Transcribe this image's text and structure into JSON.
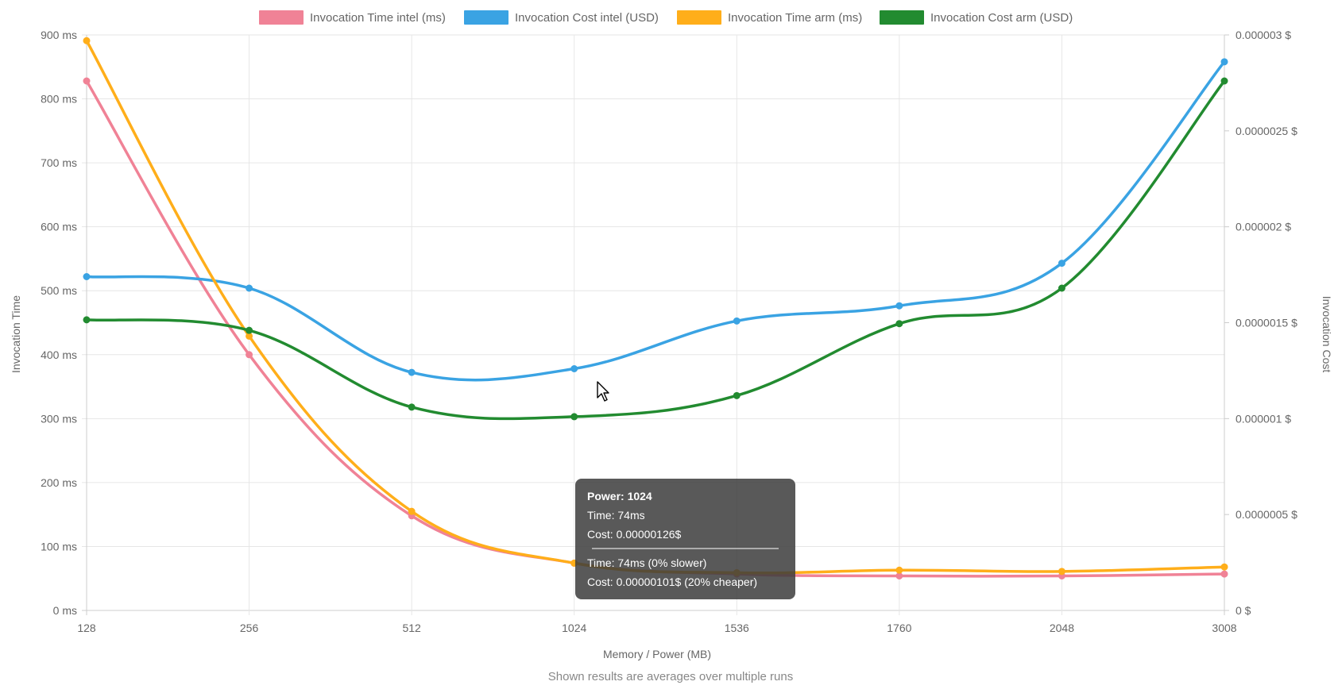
{
  "chart_data": {
    "type": "line",
    "categories": [
      "128",
      "256",
      "512",
      "1024",
      "1536",
      "1760",
      "2048",
      "3008"
    ],
    "xlabel": "Memory / Power (MB)",
    "ylabel_left": "Invocation Time",
    "ylabel_right": "Invocation Cost",
    "y_left_ticks": [
      "0 ms",
      "100 ms",
      "200 ms",
      "300 ms",
      "400 ms",
      "500 ms",
      "600 ms",
      "700 ms",
      "800 ms",
      "900 ms"
    ],
    "y_right_ticks": [
      "0 $",
      "0.0000005 $",
      "0.000001 $",
      "0.0000015 $",
      "0.000002 $",
      "0.0000025 $",
      "0.000003 $"
    ],
    "ylim_left": [
      0,
      900
    ],
    "ylim_right": [
      0,
      3e-06
    ],
    "grid": true,
    "legend_position": "top",
    "series": [
      {
        "name": "Invocation Time intel (ms)",
        "axis": "left",
        "color": "#f08296",
        "values": [
          828,
          400,
          148,
          74,
          57,
          54,
          54,
          57
        ]
      },
      {
        "name": "Invocation Cost intel (USD)",
        "axis": "right",
        "color": "#3aa3e3",
        "values": [
          1.74e-06,
          1.68e-06,
          1.241e-06,
          1.26e-06,
          1.509e-06,
          1.588e-06,
          1.81e-06,
          2.86e-06
        ]
      },
      {
        "name": "Invocation Time arm (ms)",
        "axis": "left",
        "color": "#ffae1a",
        "values": [
          891,
          429,
          155,
          74,
          59,
          63,
          61,
          68
        ]
      },
      {
        "name": "Invocation Cost arm (USD)",
        "axis": "right",
        "color": "#228b30",
        "values": [
          1.515e-06,
          1.46e-06,
          1.06e-06,
          1.01e-06,
          1.12e-06,
          1.495e-06,
          1.68e-06,
          2.76e-06
        ]
      }
    ],
    "footnote": "Shown results are averages over multiple runs",
    "tooltip": {
      "category_index": 3,
      "title": "Power: 1024",
      "lines_top": [
        "Time: 74ms",
        "Cost: 0.00000126$"
      ],
      "lines_bottom": [
        "Time: 74ms (0% slower)",
        "Cost: 0.00000101$ (20% cheaper)"
      ]
    }
  }
}
